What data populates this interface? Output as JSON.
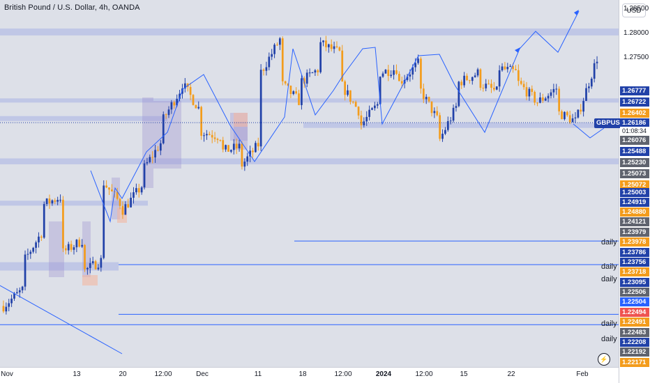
{
  "header": {
    "title": "British Pound / U.S. Dollar, 4h, OANDA",
    "currency_button": "USD"
  },
  "symbol": {
    "name": "GBPUSD",
    "price": "1.26186",
    "countdown": "01:08:34"
  },
  "colors": {
    "up": "#2141a8",
    "down": "#f39c1c",
    "zone": "#b5bfe6",
    "line": "#2962ff",
    "box": "#9a8fcf",
    "orange_box": "#f4b7a2",
    "dark": "#5f636e",
    "red": "#ef5350"
  },
  "daily_label": "daily",
  "chart_data": {
    "type": "candlestick",
    "ylim": [
      1.2122,
      1.2868
    ],
    "y_ticks": [
      "1.28500",
      "1.28000",
      "1.27500"
    ],
    "x_ticks": [
      "Nov",
      "13",
      "20",
      "12:00",
      "Dec",
      "11",
      "18",
      "12:00",
      "2024",
      "12:00",
      "15",
      "22",
      "Feb"
    ],
    "price_badges": [
      {
        "v": 1.26777,
        "c": "#2141a8"
      },
      {
        "v": 1.26722,
        "c": "#2141a8"
      },
      {
        "v": 1.26402,
        "c": "#f39c1c"
      },
      {
        "v": 1.26076,
        "c": "#5f636e"
      },
      {
        "v": 1.25488,
        "c": "#2141a8"
      },
      {
        "v": 1.2523,
        "c": "#5f636e"
      },
      {
        "v": 1.25073,
        "c": "#5f636e"
      },
      {
        "v": 1.25072,
        "c": "#f39c1c"
      },
      {
        "v": 1.25003,
        "c": "#2141a8"
      },
      {
        "v": 1.24919,
        "c": "#2141a8"
      },
      {
        "v": 1.2488,
        "c": "#f39c1c"
      },
      {
        "v": 1.24121,
        "c": "#5f636e"
      },
      {
        "v": 1.23979,
        "c": "#5f636e"
      },
      {
        "v": 1.23978,
        "c": "#f39c1c"
      },
      {
        "v": 1.23786,
        "c": "#2141a8"
      },
      {
        "v": 1.23756,
        "c": "#2141a8"
      },
      {
        "v": 1.23718,
        "c": "#f39c1c"
      },
      {
        "v": 1.23095,
        "c": "#2141a8"
      },
      {
        "v": 1.22506,
        "c": "#5f636e"
      },
      {
        "v": 1.22504,
        "c": "#2962ff"
      },
      {
        "v": 1.22494,
        "c": "#ef5350"
      },
      {
        "v": 1.22491,
        "c": "#f39c1c"
      },
      {
        "v": 1.22483,
        "c": "#5f636e"
      },
      {
        "v": 1.22208,
        "c": "#2141a8"
      },
      {
        "v": 1.22192,
        "c": "#5f636e"
      },
      {
        "v": 1.22171,
        "c": "#f39c1c"
      }
    ],
    "daily_lines": [
      1.2378,
      1.233,
      1.2229,
      1.2208
    ],
    "zones": [
      {
        "y1": 1.281,
        "y2": 1.2796
      },
      {
        "y1": 1.2668,
        "y2": 1.2662
      },
      {
        "y1": 1.2632,
        "y2": 1.2622
      },
      {
        "y1": 1.2618,
        "y2": 1.2608
      },
      {
        "y1": 1.2546,
        "y2": 1.2534
      },
      {
        "y1": 1.246,
        "y2": 1.245
      },
      {
        "y1": 1.2335,
        "y2": 1.2318
      }
    ],
    "path": [
      [
        1.225,
        1.2246
      ],
      [
        1.228,
        1.2335
      ],
      [
        1.24,
        1.2452
      ],
      [
        1.247,
        1.2355
      ],
      [
        1.238,
        1.2315
      ],
      [
        1.234,
        1.25
      ],
      [
        1.245,
        1.244
      ],
      [
        1.249,
        1.252
      ],
      [
        1.258,
        1.262
      ],
      [
        1.269,
        1.27
      ],
      [
        1.264,
        1.26
      ],
      [
        1.259,
        1.256
      ],
      [
        1.257,
        1.253
      ],
      [
        1.258,
        1.272
      ],
      [
        1.279,
        1.27
      ],
      [
        1.266,
        1.27
      ],
      [
        1.273,
        1.278
      ],
      [
        1.276,
        1.27
      ],
      [
        1.264,
        1.261
      ],
      [
        1.266,
        1.272
      ],
      [
        1.273,
        1.27
      ],
      [
        1.274,
        1.269
      ],
      [
        1.262,
        1.258
      ],
      [
        1.266,
        1.27
      ],
      [
        1.272,
        1.27
      ],
      [
        1.268,
        1.273
      ],
      [
        1.272,
        1.27
      ],
      [
        1.266,
        1.266
      ],
      [
        1.269,
        1.264
      ],
      [
        1.262,
        1.263
      ],
      [
        1.275,
        1.262
      ]
    ]
  }
}
